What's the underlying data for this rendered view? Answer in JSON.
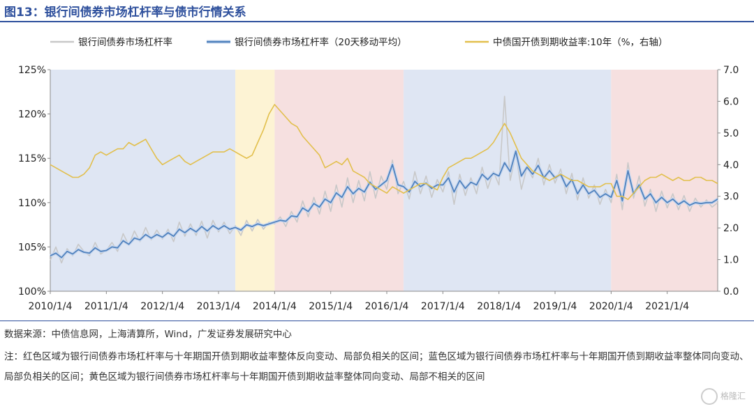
{
  "figure": {
    "title": "图13：银行间债券市场杠杆率与债市行情关系",
    "source": "数据来源：中债信息网，上海清算所，Wind，广发证券发展研究中心",
    "note": "注：红色区域为银行间债券市场杠杆率与十年期国开债到期收益率整体反向变动、局部负相关的区间；蓝色区域为银行间债券市场杠杆率与十年期国开债到期收益率整体同向变动、局部负相关的区间；黄色区域为银行间债券市场杠杆率与十年期国开债到期收益率整体同向变动、局部不相关的区间",
    "watermark_text": "格隆汇"
  },
  "chart_data": {
    "type": "line",
    "title": "",
    "x_tick_labels": [
      "2010/1/4",
      "2011/1/4",
      "2012/1/4",
      "2013/1/4",
      "2014/1/4",
      "2015/1/4",
      "2016/1/4",
      "2017/1/4",
      "2018/1/4",
      "2019/1/4",
      "2020/1/4",
      "2021/1/4"
    ],
    "x_range": [
      2010.0,
      2021.9
    ],
    "y_left": {
      "ticks": [
        "100%",
        "105%",
        "110%",
        "115%",
        "120%",
        "125%"
      ],
      "range": [
        100,
        125
      ]
    },
    "y_right": {
      "ticks": [
        "0.0",
        "1.0",
        "2.0",
        "3.0",
        "4.0",
        "5.0",
        "6.0",
        "7.0"
      ],
      "range": [
        0,
        7
      ]
    },
    "legend_position": "top",
    "regions": [
      {
        "start": 2010.0,
        "end": 2013.3,
        "kind": "blue",
        "color": "#dfe6f3"
      },
      {
        "start": 2013.3,
        "end": 2014.0,
        "kind": "yellow",
        "color": "#fdf3d4"
      },
      {
        "start": 2014.0,
        "end": 2016.3,
        "kind": "red",
        "color": "#f6e0e0"
      },
      {
        "start": 2016.3,
        "end": 2020.0,
        "kind": "blue",
        "color": "#dfe6f3"
      },
      {
        "start": 2020.0,
        "end": 2021.9,
        "kind": "red",
        "color": "#f6e0e0"
      }
    ],
    "series": [
      {
        "name": "银行间债券市场杠杆率",
        "axis": "left",
        "color": "#c8c8c8",
        "x": [
          2010.0,
          2010.1,
          2010.2,
          2010.3,
          2010.4,
          2010.5,
          2010.6,
          2010.7,
          2010.8,
          2010.9,
          2011.0,
          2011.1,
          2011.2,
          2011.3,
          2011.4,
          2011.5,
          2011.6,
          2011.7,
          2011.8,
          2011.9,
          2012.0,
          2012.1,
          2012.2,
          2012.3,
          2012.4,
          2012.5,
          2012.6,
          2012.7,
          2012.8,
          2012.9,
          2013.0,
          2013.1,
          2013.2,
          2013.3,
          2013.4,
          2013.5,
          2013.6,
          2013.7,
          2013.8,
          2013.9,
          2014.0,
          2014.1,
          2014.2,
          2014.3,
          2014.4,
          2014.5,
          2014.6,
          2014.7,
          2014.8,
          2014.9,
          2015.0,
          2015.1,
          2015.2,
          2015.3,
          2015.4,
          2015.5,
          2015.6,
          2015.7,
          2015.8,
          2015.9,
          2016.0,
          2016.1,
          2016.2,
          2016.3,
          2016.4,
          2016.5,
          2016.6,
          2016.7,
          2016.8,
          2016.9,
          2017.0,
          2017.1,
          2017.2,
          2017.3,
          2017.4,
          2017.5,
          2017.6,
          2017.7,
          2017.8,
          2017.9,
          2018.0,
          2018.1,
          2018.2,
          2018.3,
          2018.4,
          2018.5,
          2018.6,
          2018.7,
          2018.8,
          2018.9,
          2019.0,
          2019.1,
          2019.2,
          2019.3,
          2019.4,
          2019.5,
          2019.6,
          2019.7,
          2019.8,
          2019.9,
          2020.0,
          2020.1,
          2020.2,
          2020.3,
          2020.4,
          2020.5,
          2020.6,
          2020.7,
          2020.8,
          2020.9,
          2021.0,
          2021.1,
          2021.2,
          2021.3,
          2021.4,
          2021.5,
          2021.6,
          2021.7,
          2021.8,
          2021.9
        ],
        "y": [
          103.5,
          105.0,
          103.2,
          104.8,
          104.0,
          105.3,
          104.5,
          104.0,
          105.5,
          104.2,
          104.6,
          105.5,
          104.5,
          106.5,
          105.2,
          106.8,
          105.6,
          107.2,
          105.8,
          106.9,
          105.9,
          107.0,
          105.6,
          107.8,
          106.2,
          107.6,
          106.3,
          107.9,
          106.0,
          108.0,
          106.7,
          107.8,
          106.5,
          107.4,
          106.3,
          108.0,
          106.8,
          108.1,
          107.0,
          107.8,
          107.6,
          108.4,
          107.3,
          109.0,
          107.8,
          110.2,
          108.4,
          110.6,
          108.7,
          111.3,
          109.0,
          112.0,
          109.5,
          112.8,
          110.0,
          112.5,
          110.2,
          113.5,
          110.5,
          113.0,
          111.5,
          114.8,
          111.0,
          112.4,
          110.4,
          113.5,
          111.0,
          113.0,
          110.6,
          112.6,
          111.2,
          113.5,
          109.8,
          113.2,
          110.8,
          112.8,
          111.0,
          114.0,
          111.6,
          113.5,
          112.0,
          122.0,
          112.5,
          115.5,
          111.5,
          114.0,
          112.8,
          115.0,
          112.0,
          114.3,
          112.2,
          113.8,
          111.0,
          113.3,
          110.3,
          112.8,
          110.5,
          112.0,
          109.8,
          111.5,
          110.0,
          113.2,
          109.2,
          114.5,
          110.5,
          113.0,
          109.6,
          111.5,
          109.0,
          111.3,
          109.4,
          111.0,
          109.2,
          110.8,
          109.0,
          110.5,
          109.5,
          110.3,
          109.5,
          110.0
        ]
      },
      {
        "name": "银行间债券市场杠杆率（20天移动平均）",
        "axis": "left",
        "color": "#4f81bd",
        "x": [
          2010.0,
          2010.1,
          2010.2,
          2010.3,
          2010.4,
          2010.5,
          2010.6,
          2010.7,
          2010.8,
          2010.9,
          2011.0,
          2011.1,
          2011.2,
          2011.3,
          2011.4,
          2011.5,
          2011.6,
          2011.7,
          2011.8,
          2011.9,
          2012.0,
          2012.1,
          2012.2,
          2012.3,
          2012.4,
          2012.5,
          2012.6,
          2012.7,
          2012.8,
          2012.9,
          2013.0,
          2013.1,
          2013.2,
          2013.3,
          2013.4,
          2013.5,
          2013.6,
          2013.7,
          2013.8,
          2013.9,
          2014.0,
          2014.1,
          2014.2,
          2014.3,
          2014.4,
          2014.5,
          2014.6,
          2014.7,
          2014.8,
          2014.9,
          2015.0,
          2015.1,
          2015.2,
          2015.3,
          2015.4,
          2015.5,
          2015.6,
          2015.7,
          2015.8,
          2015.9,
          2016.0,
          2016.1,
          2016.2,
          2016.3,
          2016.4,
          2016.5,
          2016.6,
          2016.7,
          2016.8,
          2016.9,
          2017.0,
          2017.1,
          2017.2,
          2017.3,
          2017.4,
          2017.5,
          2017.6,
          2017.7,
          2017.8,
          2017.9,
          2018.0,
          2018.1,
          2018.2,
          2018.3,
          2018.4,
          2018.5,
          2018.6,
          2018.7,
          2018.8,
          2018.9,
          2019.0,
          2019.1,
          2019.2,
          2019.3,
          2019.4,
          2019.5,
          2019.6,
          2019.7,
          2019.8,
          2019.9,
          2020.0,
          2020.1,
          2020.2,
          2020.3,
          2020.4,
          2020.5,
          2020.6,
          2020.7,
          2020.8,
          2020.9,
          2021.0,
          2021.1,
          2021.2,
          2021.3,
          2021.4,
          2021.5,
          2021.6,
          2021.7,
          2021.8,
          2021.9
        ],
        "y": [
          104.0,
          104.3,
          103.8,
          104.5,
          104.2,
          104.7,
          104.4,
          104.3,
          104.9,
          104.5,
          104.6,
          105.0,
          104.9,
          105.7,
          105.3,
          106.0,
          105.8,
          106.4,
          106.0,
          106.4,
          106.1,
          106.6,
          106.2,
          107.0,
          106.6,
          107.1,
          106.7,
          107.3,
          106.8,
          107.4,
          107.0,
          107.4,
          107.0,
          107.2,
          106.9,
          107.5,
          107.3,
          107.6,
          107.4,
          107.6,
          107.8,
          108.0,
          107.9,
          108.5,
          108.4,
          109.4,
          109.0,
          109.9,
          109.5,
          110.4,
          110.0,
          111.1,
          110.6,
          111.8,
          111.0,
          111.6,
          111.2,
          112.3,
          111.5,
          112.0,
          112.5,
          114.3,
          112.0,
          111.8,
          111.2,
          112.4,
          111.8,
          112.2,
          111.6,
          112.0,
          112.0,
          112.8,
          111.2,
          112.5,
          111.6,
          112.3,
          112.0,
          113.2,
          112.6,
          113.3,
          113.0,
          114.5,
          113.5,
          115.8,
          113.0,
          114.0,
          113.2,
          114.2,
          112.8,
          113.6,
          112.8,
          113.2,
          111.8,
          112.6,
          111.0,
          112.0,
          111.0,
          111.4,
          110.6,
          111.0,
          110.6,
          112.5,
          110.2,
          113.6,
          111.0,
          112.0,
          110.4,
          111.0,
          110.0,
          110.6,
          110.0,
          110.4,
          109.8,
          110.2,
          109.7,
          110.0,
          109.9,
          110.0,
          110.0,
          110.4
        ]
      },
      {
        "name": "中债国开债到期收益率:10年（%，右轴）",
        "axis": "right",
        "color": "#e2bf4c",
        "x": [
          2010.0,
          2010.1,
          2010.2,
          2010.3,
          2010.4,
          2010.5,
          2010.6,
          2010.7,
          2010.8,
          2010.9,
          2011.0,
          2011.1,
          2011.2,
          2011.3,
          2011.4,
          2011.5,
          2011.6,
          2011.7,
          2011.8,
          2011.9,
          2012.0,
          2012.1,
          2012.2,
          2012.3,
          2012.4,
          2012.5,
          2012.6,
          2012.7,
          2012.8,
          2012.9,
          2013.0,
          2013.1,
          2013.2,
          2013.3,
          2013.4,
          2013.5,
          2013.6,
          2013.7,
          2013.8,
          2013.9,
          2014.0,
          2014.1,
          2014.2,
          2014.3,
          2014.4,
          2014.5,
          2014.6,
          2014.7,
          2014.8,
          2014.9,
          2015.0,
          2015.1,
          2015.2,
          2015.3,
          2015.4,
          2015.5,
          2015.6,
          2015.7,
          2015.8,
          2015.9,
          2016.0,
          2016.1,
          2016.2,
          2016.3,
          2016.4,
          2016.5,
          2016.6,
          2016.7,
          2016.8,
          2016.9,
          2017.0,
          2017.1,
          2017.2,
          2017.3,
          2017.4,
          2017.5,
          2017.6,
          2017.7,
          2017.8,
          2017.9,
          2018.0,
          2018.1,
          2018.2,
          2018.3,
          2018.4,
          2018.5,
          2018.6,
          2018.7,
          2018.8,
          2018.9,
          2019.0,
          2019.1,
          2019.2,
          2019.3,
          2019.4,
          2019.5,
          2019.6,
          2019.7,
          2019.8,
          2019.9,
          2020.0,
          2020.1,
          2020.2,
          2020.3,
          2020.4,
          2020.5,
          2020.6,
          2020.7,
          2020.8,
          2020.9,
          2021.0,
          2021.1,
          2021.2,
          2021.3,
          2021.4,
          2021.5,
          2021.6,
          2021.7,
          2021.8,
          2021.9
        ],
        "y": [
          4.0,
          3.9,
          3.8,
          3.7,
          3.6,
          3.6,
          3.7,
          3.9,
          4.3,
          4.4,
          4.3,
          4.4,
          4.5,
          4.5,
          4.7,
          4.6,
          4.7,
          4.8,
          4.5,
          4.2,
          4.0,
          4.1,
          4.2,
          4.3,
          4.1,
          4.0,
          4.1,
          4.2,
          4.3,
          4.4,
          4.4,
          4.4,
          4.5,
          4.4,
          4.3,
          4.2,
          4.3,
          4.7,
          5.1,
          5.6,
          5.9,
          5.7,
          5.5,
          5.3,
          5.2,
          4.9,
          4.7,
          4.5,
          4.3,
          3.9,
          4.0,
          4.1,
          4.0,
          4.2,
          3.8,
          3.7,
          3.6,
          3.4,
          3.3,
          3.2,
          3.1,
          3.3,
          3.2,
          3.1,
          3.2,
          3.3,
          3.4,
          3.4,
          3.3,
          3.2,
          3.6,
          3.9,
          4.0,
          4.1,
          4.2,
          4.2,
          4.3,
          4.4,
          4.5,
          4.7,
          5.0,
          5.3,
          5.0,
          4.6,
          4.2,
          4.0,
          3.8,
          3.7,
          3.6,
          3.5,
          3.6,
          3.7,
          3.6,
          3.5,
          3.5,
          3.4,
          3.3,
          3.3,
          3.3,
          3.4,
          3.4,
          3.0,
          3.0,
          2.9,
          3.1,
          3.3,
          3.5,
          3.6,
          3.6,
          3.7,
          3.6,
          3.5,
          3.6,
          3.5,
          3.5,
          3.6,
          3.6,
          3.5,
          3.5,
          3.4
        ]
      }
    ]
  }
}
